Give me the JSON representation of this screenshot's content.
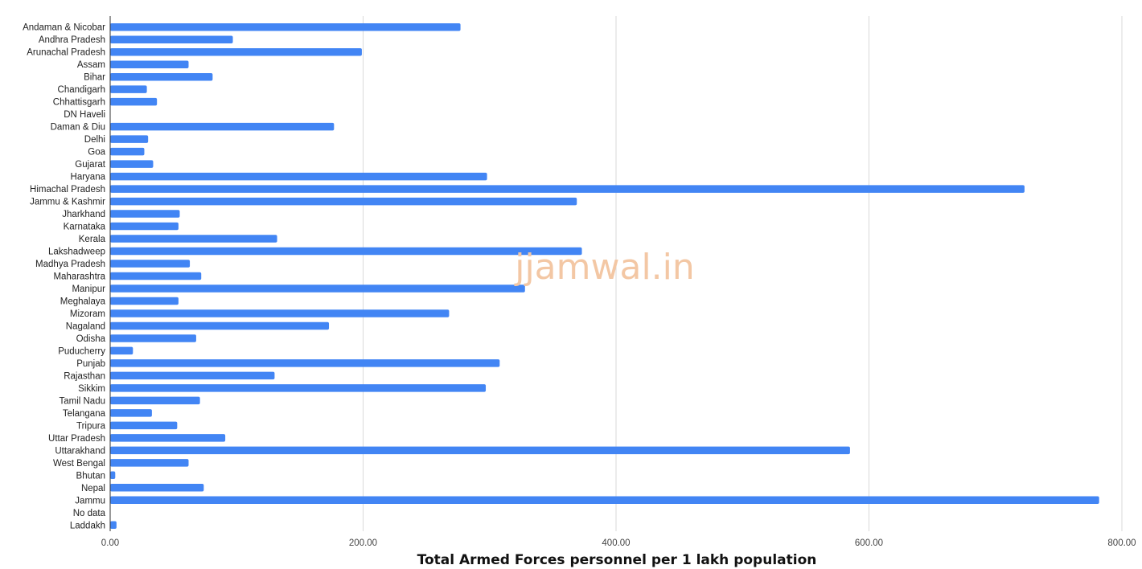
{
  "watermark": "jjamwal.in",
  "chart_data": {
    "type": "bar",
    "orientation": "horizontal",
    "title": "",
    "xlabel": "Total Armed Forces personnel per 1 lakh population",
    "ylabel": "",
    "xlim": [
      0,
      800
    ],
    "xticks": [
      0,
      200,
      400,
      600,
      800
    ],
    "xtick_labels": [
      "0.00",
      "200.00",
      "400.00",
      "600.00",
      "800.00"
    ],
    "grid": "vertical",
    "bar_color": "#4285f4",
    "categories": [
      "Andaman & Nicobar",
      "Andhra Pradesh",
      "Arunachal Pradesh",
      "Assam",
      "Bihar",
      "Chandigarh",
      "Chhattisgarh",
      "DN Haveli",
      "Daman & Diu",
      "Delhi",
      "Goa",
      "Gujarat",
      "Haryana",
      "Himachal Pradesh",
      "Jammu & Kashmir",
      "Jharkhand",
      "Karnataka",
      "Kerala",
      "Lakshadweep",
      "Madhya Pradesh",
      "Maharashtra",
      "Manipur",
      "Meghalaya",
      "Mizoram",
      "Nagaland",
      "Odisha",
      "Puducherry",
      "Punjab",
      "Rajasthan",
      "Sikkim",
      "Tamil Nadu",
      "Telangana",
      "Tripura",
      "Uttar Pradesh",
      "Uttarakhand",
      "West Bengal",
      "Bhutan",
      "Nepal",
      "Jammu",
      "No data",
      "Laddakh"
    ],
    "values": [
      277,
      97,
      199,
      62,
      81,
      29,
      37,
      0,
      177,
      30,
      27,
      34,
      298,
      723,
      369,
      55,
      54,
      132,
      373,
      63,
      72,
      328,
      54,
      268,
      173,
      68,
      18,
      308,
      130,
      297,
      71,
      33,
      53,
      91,
      585,
      62,
      4,
      74,
      782,
      0,
      5
    ]
  }
}
